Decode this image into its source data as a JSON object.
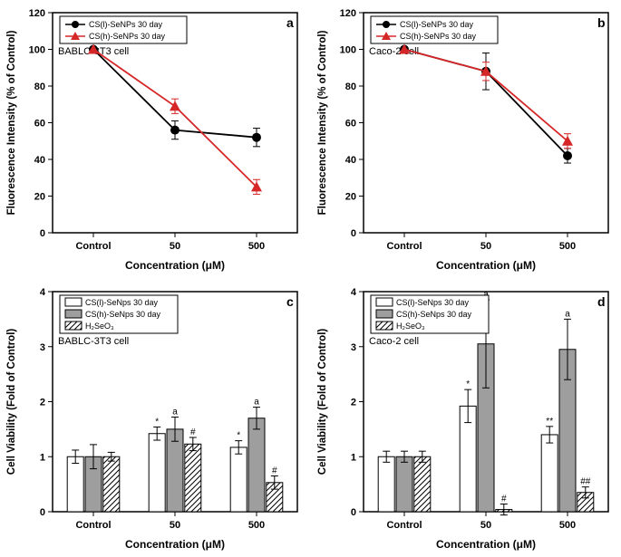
{
  "colors": {
    "black": "#000000",
    "red": "#d62728",
    "gray": "#9e9e9e",
    "hatch": "#000000",
    "white": "#ffffff"
  },
  "panelA": {
    "tag": "a",
    "cell_label": "BABLC-3T3 cell",
    "categories": [
      "Control",
      "50",
      "500"
    ],
    "yaxis_label": "Fluorescence Intensity (% of Control)",
    "xaxis_label": "Concentration (μM)",
    "ylim": [
      0,
      120
    ],
    "ytick_step": 20,
    "legend": [
      {
        "label": "CS(l)-SeNPs 30 day",
        "marker": "circle",
        "color": "#000000"
      },
      {
        "label": "CS(h)-SeNPs 30 day",
        "marker": "triangle",
        "color": "#d62728"
      }
    ],
    "series": [
      {
        "color": "#000000",
        "marker": "circle",
        "values": [
          100,
          56,
          52
        ],
        "err": [
          0,
          5,
          5
        ]
      },
      {
        "color": "#d62728",
        "marker": "triangle",
        "values": [
          100,
          69,
          25
        ],
        "err": [
          0,
          4,
          4
        ]
      }
    ]
  },
  "panelB": {
    "tag": "b",
    "cell_label": "Caco-2 cell",
    "categories": [
      "Control",
      "50",
      "500"
    ],
    "yaxis_label": "Fluorescence Intensity (% of Control)",
    "xaxis_label": "Concentration (μM)",
    "ylim": [
      0,
      120
    ],
    "ytick_step": 20,
    "legend": [
      {
        "label": "CS(l)-SeNPs 30 day",
        "marker": "circle",
        "color": "#000000"
      },
      {
        "label": "CS(h)-SeNPs 30 day",
        "marker": "triangle",
        "color": "#d62728"
      }
    ],
    "series": [
      {
        "color": "#000000",
        "marker": "circle",
        "values": [
          100,
          88,
          42
        ],
        "err": [
          0,
          10,
          4
        ]
      },
      {
        "color": "#d62728",
        "marker": "triangle",
        "values": [
          100,
          88,
          50
        ],
        "err": [
          0,
          5,
          4
        ]
      }
    ]
  },
  "panelC": {
    "tag": "c",
    "cell_label": "BABLC-3T3 cell",
    "categories": [
      "Control",
      "50",
      "500"
    ],
    "yaxis_label": "Cell Viability (Fold of Control)",
    "xaxis_label": "Concentration (μM)",
    "ylim": [
      0,
      4
    ],
    "ytick_step": 1,
    "legend": [
      {
        "label": "CS(l)-SeNps 30 day",
        "fill": "white"
      },
      {
        "label": "CS(h)-SeNps 30 day",
        "fill": "gray"
      },
      {
        "label": "H₂SeO₃",
        "fill": "hatch"
      }
    ],
    "groups": [
      {
        "bars": [
          {
            "v": 1.0,
            "e": 0.12,
            "ann": ""
          },
          {
            "v": 1.0,
            "e": 0.22,
            "ann": ""
          },
          {
            "v": 1.0,
            "e": 0.08,
            "ann": ""
          }
        ]
      },
      {
        "bars": [
          {
            "v": 1.42,
            "e": 0.12,
            "ann": "*"
          },
          {
            "v": 1.5,
            "e": 0.22,
            "ann": "a"
          },
          {
            "v": 1.23,
            "e": 0.12,
            "ann": "#"
          }
        ]
      },
      {
        "bars": [
          {
            "v": 1.17,
            "e": 0.12,
            "ann": "*"
          },
          {
            "v": 1.7,
            "e": 0.2,
            "ann": "a"
          },
          {
            "v": 0.53,
            "e": 0.12,
            "ann": "#"
          }
        ]
      }
    ],
    "bar_fills": [
      "white",
      "gray",
      "hatch"
    ]
  },
  "panelD": {
    "tag": "d",
    "cell_label": "Caco-2 cell",
    "categories": [
      "Control",
      "50",
      "500"
    ],
    "yaxis_label": "Cell Viability (Fold of Control)",
    "xaxis_label": "Concentration (μM)",
    "ylim": [
      0,
      4
    ],
    "ytick_step": 1,
    "legend": [
      {
        "label": "CS(l)-SeNps 30 day",
        "fill": "white"
      },
      {
        "label": "CS(h)-SeNps 30 day",
        "fill": "gray"
      },
      {
        "label": "H₂SeO₃",
        "fill": "hatch"
      }
    ],
    "groups": [
      {
        "bars": [
          {
            "v": 1.0,
            "e": 0.1,
            "ann": ""
          },
          {
            "v": 1.0,
            "e": 0.1,
            "ann": ""
          },
          {
            "v": 1.0,
            "e": 0.1,
            "ann": ""
          }
        ]
      },
      {
        "bars": [
          {
            "v": 1.92,
            "e": 0.3,
            "ann": "*"
          },
          {
            "v": 3.05,
            "e": 0.8,
            "ann": "a"
          },
          {
            "v": 0.04,
            "e": 0.1,
            "ann": "#"
          }
        ]
      },
      {
        "bars": [
          {
            "v": 1.4,
            "e": 0.15,
            "ann": "**"
          },
          {
            "v": 2.95,
            "e": 0.55,
            "ann": "a"
          },
          {
            "v": 0.35,
            "e": 0.1,
            "ann": "##"
          }
        ]
      }
    ],
    "bar_fills": [
      "white",
      "gray",
      "hatch"
    ]
  }
}
